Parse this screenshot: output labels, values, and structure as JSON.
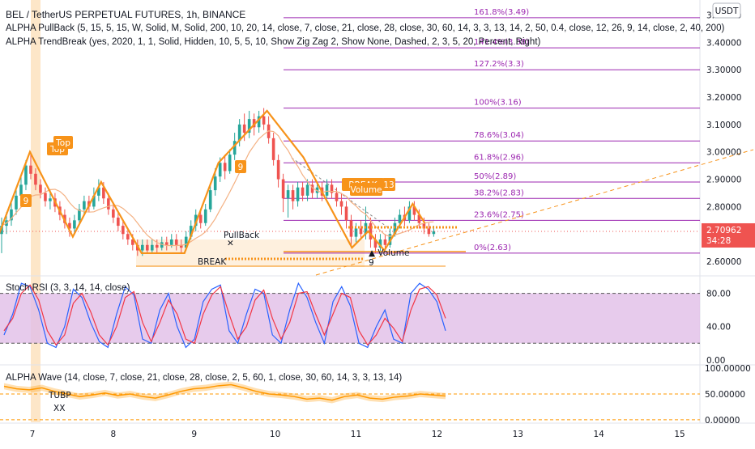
{
  "header": {
    "symbol_line": "BEL / TetherUS PERPETUAL FUTURES, 1h, BINANCE",
    "ind1": "ALPHA PullBack (5, 15, 5, 15, W, Solid, M, Solid, 200, 10, 20, 14, close, 7, close, 21, close, 28, close, 30, 60, 14, 3, 3, 13, 14, 2, 50, 0.4, close, 12, 26, 9, 14, close, 2, 40, 200)",
    "ind2": "ALPHA TrendBreak (yes, 2020, 1, 1, Solid, Hidden, 10, 5, 5, 10, Show Zig Zag 2, Show None, Dashed, 2, 3, 5, 20, Percent, Right)"
  },
  "currency_badge": "USDT",
  "price_badge": {
    "price": "2.70962",
    "countdown": "34:28"
  },
  "colors": {
    "up": "#26a69a",
    "down": "#ef5350",
    "zigzag": "#f7931a",
    "fib": "#9c27b0",
    "stoch_k": "#2962ff",
    "stoch_d": "#f23645",
    "stoch_bg": "#e1bee7",
    "wave": "#ff9800"
  },
  "chart_data": [
    {
      "type": "candlestick",
      "title": "BEL / TetherUS PERPETUAL FUTURES, 1h, BINANCE",
      "x_ticks": [
        "7",
        "8",
        "9",
        "10",
        "11",
        "12",
        "13",
        "14",
        "15"
      ],
      "y_ticks": [
        "3.50000",
        "3.40000",
        "3.30000",
        "3.20000",
        "3.10000",
        "3.00000",
        "2.90000",
        "2.80000",
        "2.60000"
      ],
      "ylim": [
        2.55,
        3.54
      ],
      "xlim": [
        6.6,
        15.25
      ],
      "zigzag": [
        [
          6.55,
          2.67
        ],
        [
          6.97,
          3.0
        ],
        [
          7.5,
          2.69
        ],
        [
          7.85,
          2.89
        ],
        [
          8.35,
          2.63
        ],
        [
          8.88,
          2.63
        ],
        [
          9.3,
          2.96
        ],
        [
          9.9,
          3.15
        ],
        [
          10.35,
          2.98
        ],
        [
          10.95,
          2.65
        ],
        [
          11.15,
          2.71
        ],
        [
          11.35,
          2.64
        ],
        [
          11.7,
          2.81
        ],
        [
          11.85,
          2.74
        ]
      ],
      "candles": [
        [
          6.62,
          2.7,
          2.73,
          2.63,
          2.76
        ],
        [
          6.68,
          2.73,
          2.75,
          2.7,
          2.78
        ],
        [
          6.74,
          2.75,
          2.79,
          2.73,
          2.82
        ],
        [
          6.8,
          2.79,
          2.84,
          2.77,
          2.87
        ],
        [
          6.86,
          2.84,
          2.88,
          2.82,
          2.91
        ],
        [
          6.92,
          2.88,
          2.95,
          2.86,
          2.97
        ],
        [
          6.98,
          2.95,
          2.92,
          2.9,
          3.0
        ],
        [
          7.04,
          2.92,
          2.88,
          2.86,
          2.94
        ],
        [
          7.1,
          2.88,
          2.85,
          2.83,
          2.9
        ],
        [
          7.16,
          2.85,
          2.82,
          2.8,
          2.87
        ],
        [
          7.22,
          2.82,
          2.83,
          2.79,
          2.86
        ],
        [
          7.28,
          2.83,
          2.8,
          2.78,
          2.85
        ],
        [
          7.34,
          2.8,
          2.77,
          2.75,
          2.82
        ],
        [
          7.4,
          2.77,
          2.74,
          2.72,
          2.79
        ],
        [
          7.46,
          2.74,
          2.72,
          2.69,
          2.76
        ],
        [
          7.52,
          2.72,
          2.75,
          2.7,
          2.77
        ],
        [
          7.58,
          2.75,
          2.79,
          2.74,
          2.81
        ],
        [
          7.64,
          2.79,
          2.82,
          2.77,
          2.84
        ],
        [
          7.7,
          2.82,
          2.8,
          2.78,
          2.84
        ],
        [
          7.76,
          2.8,
          2.84,
          2.79,
          2.87
        ],
        [
          7.82,
          2.84,
          2.87,
          2.82,
          2.9
        ],
        [
          7.88,
          2.87,
          2.83,
          2.81,
          2.89
        ],
        [
          7.94,
          2.83,
          2.79,
          2.77,
          2.85
        ],
        [
          8.0,
          2.79,
          2.76,
          2.74,
          2.81
        ],
        [
          8.06,
          2.76,
          2.73,
          2.71,
          2.78
        ],
        [
          8.12,
          2.73,
          2.7,
          2.68,
          2.75
        ],
        [
          8.18,
          2.7,
          2.68,
          2.66,
          2.72
        ],
        [
          8.24,
          2.68,
          2.66,
          2.64,
          2.7
        ],
        [
          8.3,
          2.66,
          2.64,
          2.62,
          2.68
        ],
        [
          8.36,
          2.64,
          2.66,
          2.62,
          2.68
        ],
        [
          8.42,
          2.66,
          2.64,
          2.63,
          2.68
        ],
        [
          8.48,
          2.64,
          2.66,
          2.63,
          2.68
        ],
        [
          8.54,
          2.66,
          2.65,
          2.63,
          2.68
        ],
        [
          8.6,
          2.65,
          2.67,
          2.64,
          2.69
        ],
        [
          8.66,
          2.67,
          2.66,
          2.64,
          2.69
        ],
        [
          8.72,
          2.66,
          2.68,
          2.65,
          2.7
        ],
        [
          8.78,
          2.68,
          2.66,
          2.64,
          2.7
        ],
        [
          8.84,
          2.66,
          2.65,
          2.63,
          2.68
        ],
        [
          8.9,
          2.65,
          2.69,
          2.64,
          2.71
        ],
        [
          8.96,
          2.69,
          2.73,
          2.68,
          2.75
        ],
        [
          9.02,
          2.73,
          2.77,
          2.71,
          2.79
        ],
        [
          9.08,
          2.77,
          2.74,
          2.72,
          2.79
        ],
        [
          9.14,
          2.74,
          2.79,
          2.73,
          2.81
        ],
        [
          9.2,
          2.79,
          2.86,
          2.78,
          2.88
        ],
        [
          9.26,
          2.86,
          2.91,
          2.84,
          2.94
        ],
        [
          9.32,
          2.91,
          2.96,
          2.89,
          2.98
        ],
        [
          9.38,
          2.96,
          2.93,
          2.9,
          2.99
        ],
        [
          9.44,
          2.93,
          2.99,
          2.92,
          3.01
        ],
        [
          9.5,
          2.99,
          3.04,
          2.97,
          3.07
        ],
        [
          9.56,
          3.04,
          3.1,
          3.02,
          3.12
        ],
        [
          9.62,
          3.1,
          3.07,
          3.04,
          3.14
        ],
        [
          9.68,
          3.07,
          3.12,
          3.05,
          3.15
        ],
        [
          9.74,
          3.12,
          3.09,
          3.06,
          3.14
        ],
        [
          9.8,
          3.09,
          3.13,
          3.07,
          3.15
        ],
        [
          9.86,
          3.13,
          3.1,
          3.08,
          3.16
        ],
        [
          9.92,
          3.1,
          3.05,
          3.03,
          3.13
        ],
        [
          9.98,
          3.05,
          2.97,
          2.95,
          3.07
        ],
        [
          10.04,
          2.97,
          2.9,
          2.87,
          2.99
        ],
        [
          10.1,
          2.9,
          2.83,
          2.78,
          2.92
        ],
        [
          10.16,
          2.83,
          2.86,
          2.76,
          2.88
        ],
        [
          10.22,
          2.86,
          2.82,
          2.79,
          2.88
        ],
        [
          10.28,
          2.82,
          2.87,
          2.8,
          2.89
        ],
        [
          10.34,
          2.87,
          2.84,
          2.82,
          2.89
        ],
        [
          10.4,
          2.84,
          2.88,
          2.82,
          2.9
        ],
        [
          10.46,
          2.88,
          2.85,
          2.83,
          2.9
        ],
        [
          10.52,
          2.85,
          2.87,
          2.83,
          2.89
        ],
        [
          10.58,
          2.87,
          2.84,
          2.82,
          2.89
        ],
        [
          10.64,
          2.84,
          2.88,
          2.83,
          2.9
        ],
        [
          10.7,
          2.88,
          2.85,
          2.83,
          2.9
        ],
        [
          10.76,
          2.85,
          2.82,
          2.8,
          2.87
        ],
        [
          10.82,
          2.82,
          2.8,
          2.77,
          2.85
        ],
        [
          10.88,
          2.8,
          2.75,
          2.72,
          2.82
        ],
        [
          10.94,
          2.75,
          2.69,
          2.65,
          2.77
        ],
        [
          11.0,
          2.69,
          2.72,
          2.67,
          2.74
        ],
        [
          11.06,
          2.72,
          2.7,
          2.68,
          2.75
        ],
        [
          11.12,
          2.7,
          2.74,
          2.68,
          2.8
        ],
        [
          11.18,
          2.74,
          2.68,
          2.65,
          2.76
        ],
        [
          11.24,
          2.68,
          2.65,
          2.63,
          2.7
        ],
        [
          11.3,
          2.65,
          2.68,
          2.63,
          2.7
        ],
        [
          11.36,
          2.68,
          2.66,
          2.64,
          2.7
        ],
        [
          11.42,
          2.66,
          2.7,
          2.65,
          2.72
        ],
        [
          11.48,
          2.7,
          2.74,
          2.69,
          2.76
        ],
        [
          11.54,
          2.74,
          2.77,
          2.72,
          2.79
        ],
        [
          11.6,
          2.77,
          2.75,
          2.73,
          2.8
        ],
        [
          11.66,
          2.75,
          2.8,
          2.74,
          2.82
        ],
        [
          11.72,
          2.8,
          2.77,
          2.75,
          2.82
        ],
        [
          11.78,
          2.77,
          2.74,
          2.72,
          2.79
        ],
        [
          11.84,
          2.74,
          2.72,
          2.7,
          2.76
        ],
        [
          11.9,
          2.72,
          2.7,
          2.69,
          2.74
        ],
        [
          11.96,
          2.7,
          2.71,
          2.69,
          2.73
        ]
      ],
      "fib_levels": [
        {
          "label": "161.8%(3.49)",
          "value": 3.49
        },
        {
          "label": "141.4%(3.38)",
          "value": 3.38
        },
        {
          "label": "127.2%(3.3)",
          "value": 3.3
        },
        {
          "label": "100%(3.16)",
          "value": 3.16
        },
        {
          "label": "78.6%(3.04)",
          "value": 3.04
        },
        {
          "label": "61.8%(2.96)",
          "value": 2.96
        },
        {
          "label": "50%(2.89)",
          "value": 2.89
        },
        {
          "label": "38.2%(2.83)",
          "value": 2.83
        },
        {
          "label": "23.6%(2.75)",
          "value": 2.75
        },
        {
          "label": "0%(2.63)",
          "value": 2.63
        }
      ],
      "annotations": [
        "Top",
        "Top",
        "9",
        "9",
        "PullBack",
        "BREAK",
        "BREAK",
        "Volume",
        "13",
        "Volume",
        "9"
      ]
    },
    {
      "type": "line",
      "title": "Stoch RSI (3, 3, 14, 14, close)",
      "y_ticks": [
        "80.00",
        "40.00",
        "0.00"
      ],
      "ylim": [
        -5,
        100
      ],
      "band": [
        20,
        80
      ],
      "series": [
        {
          "name": "K",
          "values": [
            30,
            55,
            92,
            88,
            60,
            20,
            15,
            40,
            85,
            75,
            45,
            22,
            15,
            55,
            88,
            78,
            25,
            20,
            60,
            80,
            40,
            15,
            25,
            70,
            85,
            90,
            35,
            20,
            55,
            85,
            80,
            30,
            20,
            60,
            92,
            75,
            45,
            20,
            70,
            88,
            65,
            20,
            15,
            40,
            60,
            25,
            20,
            80,
            92,
            85,
            70,
            35
          ]
        },
        {
          "name": "D",
          "values": [
            35,
            50,
            80,
            90,
            72,
            35,
            18,
            30,
            68,
            80,
            58,
            30,
            18,
            40,
            75,
            82,
            45,
            22,
            45,
            72,
            55,
            25,
            20,
            55,
            78,
            88,
            55,
            25,
            40,
            72,
            84,
            50,
            25,
            45,
            80,
            82,
            55,
            30,
            55,
            80,
            75,
            35,
            18,
            30,
            50,
            38,
            22,
            60,
            85,
            88,
            78,
            50
          ]
        }
      ]
    },
    {
      "type": "area",
      "title": "ALPHA Wave (14, close, 7, close, 21, close, 28, close, 2, 5, 60, 1, close, 30, 60, 14, 3, 3, 13, 14)",
      "y_ticks": [
        "100.00000",
        "50.00000",
        "0.00000"
      ],
      "ylim": [
        -5,
        105
      ],
      "values": [
        65,
        60,
        58,
        62,
        55,
        50,
        45,
        48,
        52,
        47,
        50,
        45,
        42,
        48,
        55,
        60,
        62,
        66,
        68,
        62,
        55,
        50,
        48,
        45,
        40,
        42,
        38,
        45,
        48,
        42,
        40,
        44,
        46,
        50,
        48,
        46
      ],
      "annotations": [
        "TUBP",
        "XX"
      ]
    }
  ]
}
